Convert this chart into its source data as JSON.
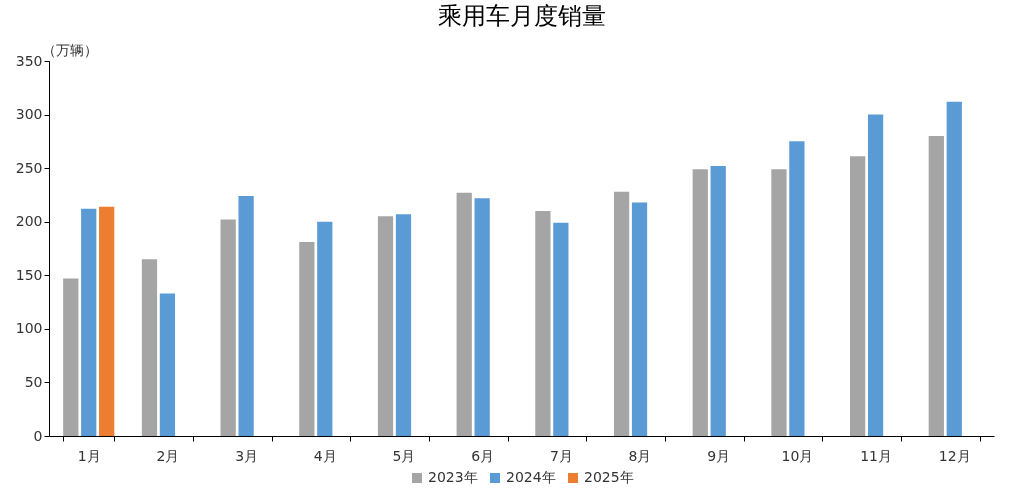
{
  "chart_data": {
    "type": "bar",
    "title": "乘用车月度销量",
    "ylabel": "（万辆）",
    "categories": [
      "1月",
      "2月",
      "3月",
      "4月",
      "5月",
      "6月",
      "7月",
      "8月",
      "9月",
      "10月",
      "11月",
      "12月"
    ],
    "series": [
      {
        "name": "2023年",
        "color": "#a5a5a5",
        "values": [
          147,
          165,
          202,
          181,
          205,
          227,
          210,
          228,
          249,
          249,
          261,
          280
        ]
      },
      {
        "name": "2024年",
        "color": "#5b9bd5",
        "values": [
          212,
          133,
          224,
          200,
          207,
          222,
          199,
          218,
          252,
          275,
          300,
          312
        ]
      },
      {
        "name": "2025年",
        "color": "#ed7d31",
        "values": [
          214,
          null,
          null,
          null,
          null,
          null,
          null,
          null,
          null,
          null,
          null,
          null
        ]
      }
    ],
    "ylim": [
      0,
      350
    ],
    "yticks": [
      0,
      50,
      100,
      150,
      200,
      250,
      300,
      350
    ],
    "grid": false,
    "legend": "bottom"
  }
}
